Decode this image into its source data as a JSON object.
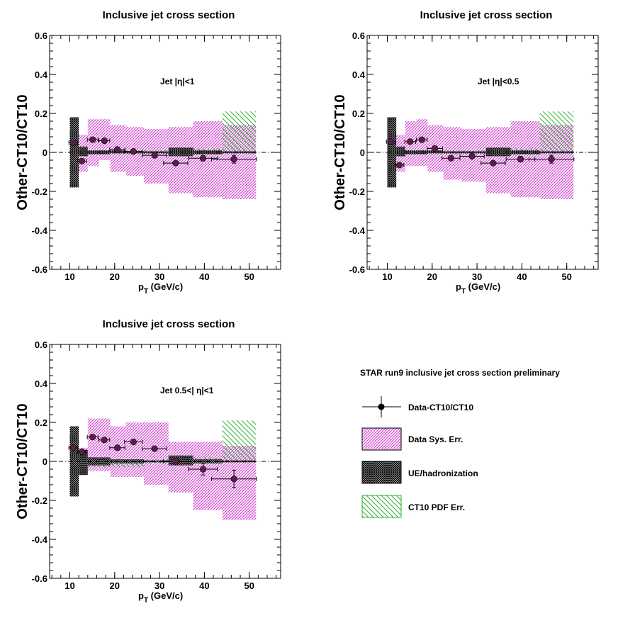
{
  "colors": {
    "data_marker": "#5a1e4b",
    "data_sys": "#d23ad2",
    "ue_hadronization": "#000000",
    "ct10_pdf": "#2fb12f",
    "zero_line": "#000000"
  },
  "legend": {
    "title": "STAR run9 inclusive jet cross section preliminary",
    "entries": [
      {
        "key": "data",
        "label": "Data-CT10/CT10"
      },
      {
        "key": "sys",
        "label": "Data Sys. Err."
      },
      {
        "key": "ue",
        "label": "UE/hadronization"
      },
      {
        "key": "pdf",
        "label": "CT10 PDF Err."
      }
    ]
  },
  "chart_data": [
    {
      "type": "scatter",
      "title": "Inclusive jet cross section",
      "annotation": "Jet |η|<1",
      "xlabel": "p",
      "xlabel_sub": "T",
      "xlabel_unit": " (GeV/c)",
      "ylabel": "Other-CT10/CT10",
      "xlim": [
        5.5,
        57
      ],
      "ylim": [
        -0.6,
        0.6
      ],
      "xticks": [
        10,
        20,
        30,
        40,
        50
      ],
      "yticks": [
        -0.6,
        -0.4,
        -0.2,
        0,
        0.2,
        0.4,
        0.6
      ],
      "ytick_labels": [
        "-0.6",
        "-0.4",
        "-0.2",
        "0",
        "0.2",
        "0.4",
        "0.6"
      ],
      "bins": [
        {
          "lo": 10,
          "hi": 12
        },
        {
          "lo": 12,
          "hi": 14
        },
        {
          "lo": 14,
          "hi": 16.5
        },
        {
          "lo": 16.5,
          "hi": 19
        },
        {
          "lo": 19,
          "hi": 22.5
        },
        {
          "lo": 22.5,
          "hi": 26.5
        },
        {
          "lo": 26.5,
          "hi": 32
        },
        {
          "lo": 32,
          "hi": 37.5
        },
        {
          "lo": 37.5,
          "hi": 44
        },
        {
          "lo": 44,
          "hi": 51.5
        }
      ],
      "series": [
        {
          "name": "Data-CT10/CT10",
          "x": [
            10.8,
            12.7,
            15.1,
            17.7,
            20.6,
            24.2,
            28.9,
            33.6,
            39.7,
            46.6
          ],
          "y": [
            0.05,
            -0.045,
            0.065,
            0.06,
            0.015,
            0.005,
            -0.015,
            -0.055,
            -0.03,
            -0.035
          ],
          "xerr": [
            1.0,
            1.0,
            1.2,
            1.2,
            1.7,
            2.0,
            2.7,
            2.7,
            3.2,
            5.0
          ],
          "yerr": [
            0.008,
            0.008,
            0.008,
            0.008,
            0.008,
            0.008,
            0.008,
            0.008,
            0.014,
            0.02
          ]
        },
        {
          "name": "Data Sys. Err.",
          "low": [
            -0.08,
            -0.1,
            -0.07,
            -0.04,
            -0.1,
            -0.12,
            -0.16,
            -0.21,
            -0.23,
            -0.24
          ],
          "high": [
            0.1,
            0.09,
            0.17,
            0.17,
            0.14,
            0.13,
            0.12,
            0.13,
            0.16,
            0.14
          ]
        },
        {
          "name": "UE/hadronization",
          "low": [
            -0.18,
            -0.02,
            -0.01,
            -0.01,
            -0.005,
            -0.005,
            -0.005,
            -0.02,
            -0.01,
            -0.005
          ],
          "high": [
            0.18,
            0.03,
            0.01,
            0.01,
            0.01,
            0.005,
            0.005,
            0.025,
            0.01,
            0.005
          ]
        },
        {
          "name": "CT10 PDF Err.",
          "low": [
            -0.01,
            -0.01,
            -0.01,
            -0.01,
            -0.01,
            -0.01,
            -0.01,
            -0.01,
            -0.005,
            -0.005
          ],
          "high": [
            0.01,
            0.01,
            0.01,
            0.01,
            0.01,
            0.01,
            0.01,
            0.01,
            0.02,
            0.21
          ]
        }
      ]
    },
    {
      "type": "scatter",
      "title": "Inclusive jet cross section",
      "annotation": "Jet |η|<0.5",
      "xlabel": "p",
      "xlabel_sub": "T",
      "xlabel_unit": " (GeV/c)",
      "ylabel": "Other-CT10/CT10",
      "xlim": [
        5.5,
        57
      ],
      "ylim": [
        -0.6,
        0.6
      ],
      "xticks": [
        10,
        20,
        30,
        40,
        50
      ],
      "yticks": [
        -0.6,
        -0.4,
        -0.2,
        0,
        0.2,
        0.4,
        0.6
      ],
      "ytick_labels": [
        "-0.6",
        "-0.4",
        "-0.2",
        "0",
        "0.2",
        "0.4",
        "0.6"
      ],
      "bins": [
        {
          "lo": 10,
          "hi": 12
        },
        {
          "lo": 12,
          "hi": 14
        },
        {
          "lo": 14,
          "hi": 16.5
        },
        {
          "lo": 16.5,
          "hi": 19
        },
        {
          "lo": 19,
          "hi": 22.5
        },
        {
          "lo": 22.5,
          "hi": 26.5
        },
        {
          "lo": 26.5,
          "hi": 32
        },
        {
          "lo": 32,
          "hi": 37.5
        },
        {
          "lo": 37.5,
          "hi": 44
        },
        {
          "lo": 44,
          "hi": 51.5
        }
      ],
      "series": [
        {
          "name": "Data-CT10/CT10",
          "x": [
            10.8,
            12.7,
            15.1,
            17.7,
            20.6,
            24.2,
            28.9,
            33.6,
            39.7,
            46.6
          ],
          "y": [
            0.055,
            -0.065,
            0.055,
            0.065,
            0.02,
            -0.03,
            -0.02,
            -0.055,
            -0.035,
            -0.035
          ],
          "xerr": [
            1.0,
            1.0,
            1.2,
            1.2,
            1.7,
            2.0,
            2.7,
            2.7,
            3.2,
            5.0
          ],
          "yerr": [
            0.008,
            0.008,
            0.008,
            0.008,
            0.008,
            0.008,
            0.008,
            0.008,
            0.014,
            0.02
          ]
        },
        {
          "name": "Data Sys. Err.",
          "low": [
            -0.08,
            -0.1,
            -0.07,
            -0.07,
            -0.1,
            -0.14,
            -0.15,
            -0.21,
            -0.23,
            -0.24
          ],
          "high": [
            0.1,
            0.09,
            0.16,
            0.17,
            0.14,
            0.13,
            0.12,
            0.13,
            0.16,
            0.14
          ]
        },
        {
          "name": "UE/hadronization",
          "low": [
            -0.18,
            -0.02,
            -0.01,
            -0.01,
            -0.005,
            -0.005,
            -0.005,
            -0.02,
            -0.01,
            -0.005
          ],
          "high": [
            0.18,
            0.03,
            0.01,
            0.01,
            0.01,
            0.005,
            0.005,
            0.025,
            0.01,
            0.005
          ]
        },
        {
          "name": "CT10 PDF Err.",
          "low": [
            -0.01,
            -0.01,
            -0.01,
            -0.01,
            -0.01,
            -0.01,
            -0.01,
            -0.01,
            -0.005,
            -0.005
          ],
          "high": [
            0.01,
            0.01,
            0.01,
            0.01,
            0.01,
            0.01,
            0.01,
            0.01,
            0.02,
            0.21
          ]
        }
      ]
    },
    {
      "type": "scatter",
      "title": "Inclusive jet cross section",
      "annotation": "Jet 0.5<| η|<1",
      "xlabel": "p",
      "xlabel_sub": "T",
      "xlabel_unit": " (GeV/c)",
      "ylabel": "Other-CT10/CT10",
      "xlim": [
        5.5,
        57
      ],
      "ylim": [
        -0.6,
        0.6
      ],
      "xticks": [
        10,
        20,
        30,
        40,
        50
      ],
      "yticks": [
        -0.6,
        -0.4,
        -0.2,
        0,
        0.2,
        0.4,
        0.6
      ],
      "ytick_labels": [
        "-0.6",
        "-0.4",
        "-0.2",
        "0",
        "0.2",
        "0.4",
        "0.6"
      ],
      "bins": [
        {
          "lo": 10,
          "hi": 12
        },
        {
          "lo": 12,
          "hi": 14
        },
        {
          "lo": 14,
          "hi": 16.5
        },
        {
          "lo": 16.5,
          "hi": 19
        },
        {
          "lo": 19,
          "hi": 22.5
        },
        {
          "lo": 22.5,
          "hi": 26.5
        },
        {
          "lo": 26.5,
          "hi": 32
        },
        {
          "lo": 32,
          "hi": 37.5
        },
        {
          "lo": 37.5,
          "hi": 44
        },
        {
          "lo": 44,
          "hi": 51.5
        }
      ],
      "series": [
        {
          "name": "Data-CT10/CT10",
          "x": [
            10.8,
            12.7,
            15.1,
            17.7,
            20.6,
            24.2,
            28.9,
            33.6,
            39.7,
            46.6
          ],
          "y": [
            0.07,
            0.05,
            0.125,
            0.11,
            0.07,
            0.1,
            0.065,
            0.0,
            -0.04,
            -0.09
          ],
          "xerr": [
            1.0,
            1.0,
            1.2,
            1.2,
            1.7,
            2.0,
            2.7,
            2.7,
            3.2,
            5.0
          ],
          "yerr": [
            0.008,
            0.008,
            0.008,
            0.008,
            0.008,
            0.008,
            0.008,
            0.008,
            0.03,
            0.045
          ]
        },
        {
          "name": "Data Sys. Err.",
          "low": [
            -0.08,
            -0.07,
            -0.05,
            -0.05,
            -0.08,
            -0.08,
            -0.12,
            -0.16,
            -0.25,
            -0.3
          ],
          "high": [
            0.1,
            0.07,
            0.22,
            0.22,
            0.18,
            0.2,
            0.2,
            0.1,
            0.1,
            0.08
          ]
        },
        {
          "name": "UE/hadronization",
          "low": [
            -0.18,
            -0.07,
            -0.02,
            -0.02,
            -0.01,
            -0.01,
            -0.005,
            -0.02,
            -0.01,
            -0.005
          ],
          "high": [
            0.18,
            0.06,
            0.02,
            0.02,
            0.01,
            0.01,
            0.005,
            0.03,
            0.01,
            0.005
          ]
        },
        {
          "name": "CT10 PDF Err.",
          "low": [
            -0.01,
            -0.01,
            -0.03,
            -0.03,
            -0.03,
            -0.03,
            -0.01,
            -0.01,
            -0.005,
            -0.005
          ],
          "high": [
            0.01,
            0.01,
            0.01,
            0.01,
            0.01,
            0.01,
            0.01,
            0.01,
            0.02,
            0.21
          ]
        }
      ]
    }
  ]
}
